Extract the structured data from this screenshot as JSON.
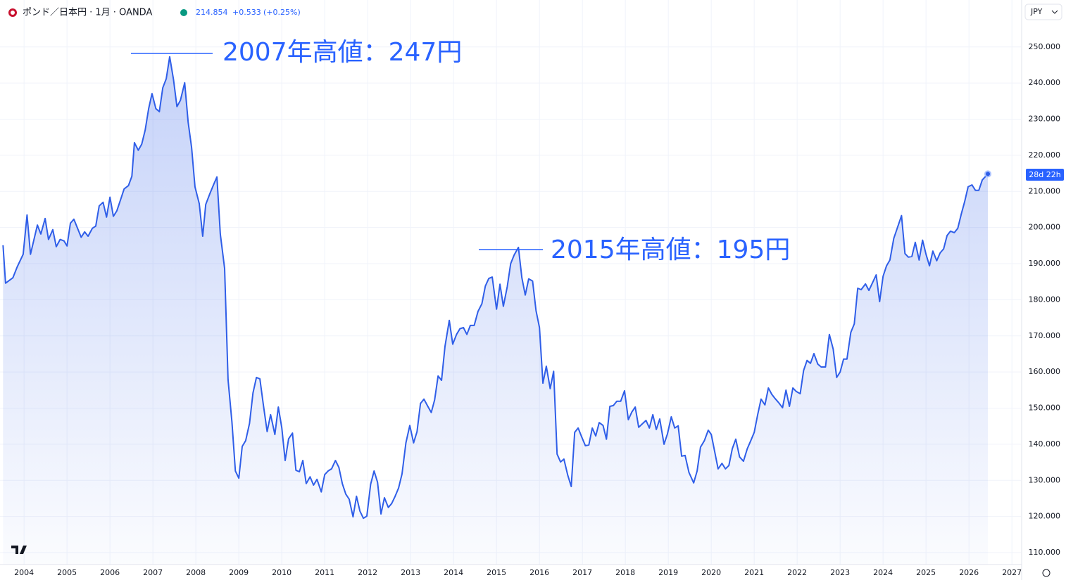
{
  "header": {
    "symbol": "ポンド／日本円 · 1月 · OANDA",
    "price": "214.854",
    "change": "+0.533",
    "change_pct": "(+0.25%)",
    "currency": "JPY",
    "countdown": "28d 22h"
  },
  "chart_data": {
    "type": "area",
    "color": "#2f5ee8",
    "grid": true,
    "annotations": [
      "2007年高値：247円",
      "2015年高値：195円"
    ],
    "xlim": [
      2003.44,
      2027.21
    ],
    "xticks": [
      2004,
      2005,
      2006,
      2007,
      2008,
      2009,
      2010,
      2011,
      2012,
      2013,
      2014,
      2015,
      2016,
      2017,
      2018,
      2019,
      2020,
      2021,
      2022,
      2023,
      2024,
      2025,
      2026,
      2027
    ],
    "ylim": [
      106.7,
      263
    ],
    "yticks": [
      {
        "value": 110,
        "label": "110.000"
      },
      {
        "value": 120,
        "label": "120.000"
      },
      {
        "value": 130,
        "label": "130.000"
      },
      {
        "value": 140,
        "label": "140.000"
      },
      {
        "value": 150,
        "label": "150.000"
      },
      {
        "value": 160,
        "label": "160.000"
      },
      {
        "value": 170,
        "label": "170.000"
      },
      {
        "value": 180,
        "label": "180.000"
      },
      {
        "value": 190,
        "label": "190.000"
      },
      {
        "value": 200,
        "label": "200.000"
      },
      {
        "value": 210,
        "label": "210.000"
      },
      {
        "value": 220,
        "label": "220.000"
      },
      {
        "value": 230,
        "label": "230.000"
      },
      {
        "value": 240,
        "label": "240.000"
      },
      {
        "value": 250,
        "label": "250.000"
      }
    ],
    "x": [
      2003.51,
      2003.57,
      2003.74,
      2003.84,
      2003.98,
      2004.07,
      2004.15,
      2004.31,
      2004.39,
      2004.49,
      2004.57,
      2004.67,
      2004.75,
      2004.84,
      2004.93,
      2005.0,
      2005.08,
      2005.16,
      2005.33,
      2005.41,
      2005.49,
      2005.59,
      2005.67,
      2005.75,
      2005.84,
      2005.92,
      2006.0,
      2006.08,
      2006.16,
      2006.25,
      2006.33,
      2006.43,
      2006.51,
      2006.57,
      2006.66,
      2006.74,
      2006.82,
      2006.9,
      2006.98,
      2007.07,
      2007.15,
      2007.23,
      2007.31,
      2007.39,
      2007.48,
      2007.56,
      2007.64,
      2007.74,
      2007.82,
      2007.9,
      2007.98,
      2008.08,
      2008.16,
      2008.23,
      2008.33,
      2008.41,
      2008.49,
      2008.57,
      2008.67,
      2008.75,
      2008.84,
      2008.92,
      2009.0,
      2009.08,
      2009.16,
      2009.25,
      2009.33,
      2009.41,
      2009.49,
      2009.57,
      2009.66,
      2009.74,
      2009.84,
      2009.92,
      2010.0,
      2010.08,
      2010.16,
      2010.25,
      2010.33,
      2010.41,
      2010.49,
      2010.57,
      2010.66,
      2010.74,
      2010.82,
      2010.92,
      2011.0,
      2011.08,
      2011.16,
      2011.25,
      2011.33,
      2011.41,
      2011.49,
      2011.57,
      2011.66,
      2011.74,
      2011.82,
      2011.9,
      2011.98,
      2012.07,
      2012.15,
      2012.23,
      2012.31,
      2012.39,
      2012.48,
      2012.56,
      2012.64,
      2012.72,
      2012.8,
      2012.89,
      2012.98,
      2013.07,
      2013.15,
      2013.23,
      2013.31,
      2013.39,
      2013.48,
      2013.56,
      2013.64,
      2013.72,
      2013.8,
      2013.9,
      2013.98,
      2014.07,
      2014.15,
      2014.23,
      2014.31,
      2014.39,
      2014.48,
      2014.57,
      2014.66,
      2014.74,
      2014.82,
      2014.9,
      2015.0,
      2015.08,
      2015.16,
      2015.25,
      2015.33,
      2015.41,
      2015.51,
      2015.59,
      2015.67,
      2015.75,
      2015.84,
      2015.92,
      2016.0,
      2016.08,
      2016.16,
      2016.25,
      2016.33,
      2016.41,
      2016.49,
      2016.57,
      2016.66,
      2016.74,
      2016.82,
      2016.9,
      2016.98,
      2017.07,
      2017.15,
      2017.23,
      2017.31,
      2017.39,
      2017.48,
      2017.56,
      2017.64,
      2017.72,
      2017.8,
      2017.89,
      2017.98,
      2018.07,
      2018.15,
      2018.23,
      2018.31,
      2018.39,
      2018.48,
      2018.56,
      2018.64,
      2018.72,
      2018.8,
      2018.9,
      2018.98,
      2019.07,
      2019.15,
      2019.23,
      2019.31,
      2019.39,
      2019.48,
      2019.59,
      2019.67,
      2019.75,
      2019.84,
      2019.93,
      2020.0,
      2020.16,
      2020.25,
      2020.33,
      2020.41,
      2020.49,
      2020.57,
      2020.66,
      2020.75,
      2020.84,
      2020.92,
      2021.0,
      2021.08,
      2021.16,
      2021.25,
      2021.33,
      2021.41,
      2021.49,
      2021.57,
      2021.66,
      2021.74,
      2021.82,
      2021.9,
      2021.98,
      2022.07,
      2022.15,
      2022.23,
      2022.31,
      2022.39,
      2022.48,
      2022.56,
      2022.66,
      2022.75,
      2022.84,
      2022.92,
      2023.0,
      2023.08,
      2023.16,
      2023.25,
      2023.33,
      2023.41,
      2023.49,
      2023.59,
      2023.67,
      2023.75,
      2023.84,
      2023.92,
      2024.0,
      2024.08,
      2024.16,
      2024.25,
      2024.33,
      2024.43,
      2024.51,
      2024.59,
      2024.67,
      2024.75,
      2024.84,
      2024.92,
      2025.0,
      2025.08,
      2025.16,
      2025.25,
      2025.33,
      2025.41,
      2025.49,
      2025.57,
      2025.66,
      2025.74,
      2025.82,
      2025.9,
      2025.98,
      2026.07,
      2026.15,
      2026.23,
      2026.31,
      2026.44
    ],
    "values": [
      195.1,
      184.6,
      186.1,
      189.1,
      192.6,
      203.5,
      192.6,
      200.7,
      198.2,
      202.5,
      196.7,
      199.4,
      194.7,
      196.7,
      196.3,
      194.9,
      201.2,
      202.3,
      197.3,
      198.8,
      197.6,
      199.8,
      200.4,
      206.0,
      207.0,
      202.9,
      208.4,
      203.1,
      204.6,
      207.8,
      210.7,
      211.6,
      214.2,
      223.5,
      221.4,
      223.1,
      227.0,
      232.9,
      237.1,
      232.9,
      232.1,
      238.7,
      241.2,
      247.3,
      241.0,
      233.5,
      235.2,
      240.1,
      229.2,
      222.2,
      211.3,
      206.6,
      197.6,
      206.4,
      209.5,
      211.8,
      214.0,
      198.2,
      188.7,
      157.9,
      146.2,
      132.6,
      130.6,
      139.4,
      141.0,
      145.8,
      154.2,
      158.5,
      158.1,
      151.1,
      143.5,
      148.2,
      142.7,
      150.3,
      144.6,
      135.5,
      141.5,
      143.1,
      132.8,
      132.4,
      135.5,
      129.1,
      131.0,
      128.7,
      130.3,
      126.8,
      131.6,
      132.6,
      133.2,
      135.5,
      133.6,
      129.1,
      126.2,
      124.8,
      119.9,
      125.6,
      121.5,
      119.5,
      120.1,
      128.9,
      132.6,
      129.5,
      120.7,
      125.2,
      122.5,
      123.6,
      125.6,
      127.9,
      131.8,
      140.4,
      145.2,
      140.4,
      143.5,
      151.3,
      152.5,
      150.7,
      148.8,
      152.3,
      158.9,
      157.7,
      167.1,
      174.3,
      167.7,
      170.4,
      172.0,
      172.3,
      170.4,
      172.9,
      172.9,
      176.8,
      178.9,
      183.8,
      185.9,
      186.3,
      177.4,
      184.3,
      178.2,
      183.6,
      190.0,
      192.4,
      194.5,
      186.1,
      181.3,
      185.8,
      185.2,
      177.0,
      172.3,
      156.9,
      161.6,
      155.4,
      160.2,
      137.3,
      135.1,
      135.9,
      131.4,
      128.3,
      143.3,
      144.5,
      142.1,
      139.6,
      139.8,
      144.5,
      142.3,
      146.0,
      145.2,
      141.4,
      150.5,
      150.7,
      151.9,
      151.9,
      154.8,
      146.8,
      148.9,
      150.3,
      144.7,
      145.6,
      146.6,
      144.5,
      148.2,
      144.1,
      147.0,
      140.0,
      142.9,
      147.6,
      144.5,
      145.1,
      136.7,
      136.9,
      132.2,
      129.3,
      132.6,
      139.2,
      141.0,
      143.9,
      142.7,
      133.2,
      134.7,
      133.2,
      134.1,
      138.8,
      141.4,
      136.5,
      135.3,
      138.8,
      141.0,
      143.3,
      148.2,
      152.5,
      150.9,
      155.6,
      153.8,
      152.6,
      151.5,
      150.1,
      155.0,
      150.5,
      155.6,
      154.6,
      154.0,
      160.4,
      163.2,
      162.4,
      165.1,
      162.2,
      161.4,
      161.4,
      170.4,
      166.3,
      158.5,
      160.0,
      163.6,
      163.6,
      171.0,
      173.3,
      183.2,
      182.8,
      184.4,
      182.6,
      184.6,
      186.9,
      179.5,
      186.5,
      189.4,
      191.0,
      197.0,
      199.8,
      203.3,
      192.8,
      191.8,
      192.0,
      195.9,
      191.0,
      196.5,
      192.6,
      189.4,
      193.5,
      190.8,
      193.0,
      194.1,
      197.8,
      199.0,
      198.6,
      199.8,
      203.7,
      207.2,
      211.3,
      211.8,
      210.3,
      210.3,
      213.2,
      214.854
    ]
  }
}
